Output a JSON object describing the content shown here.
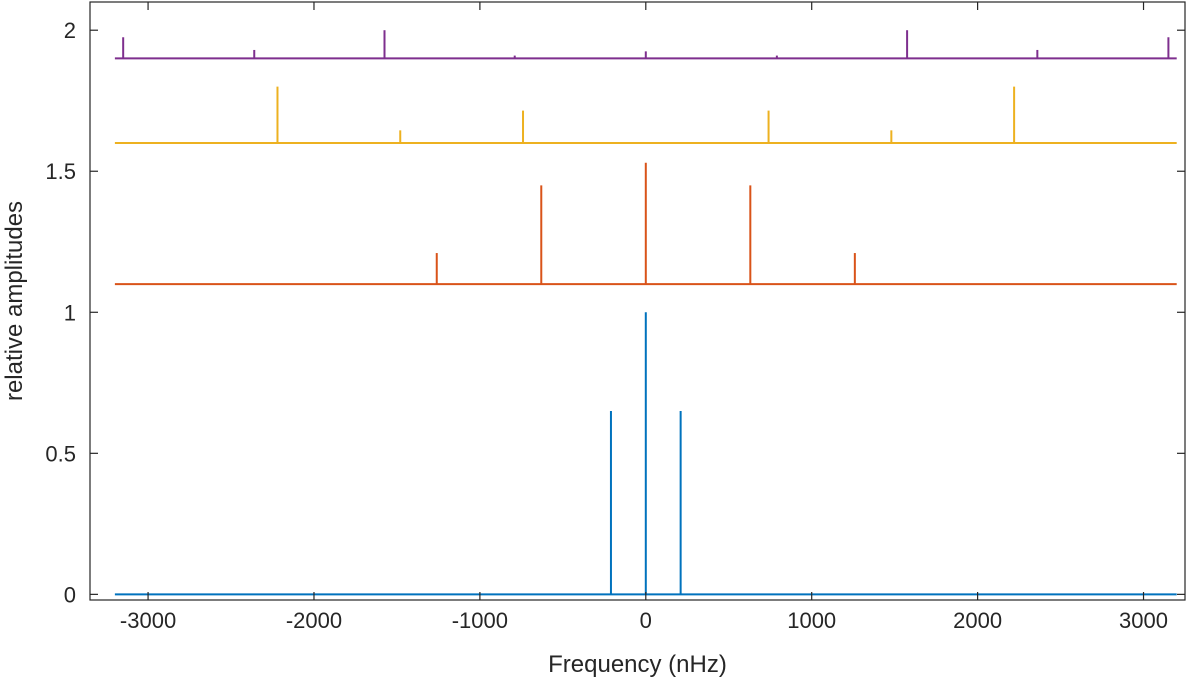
{
  "chart_data": {
    "type": "line",
    "title": "",
    "xlabel": "Frequency (nHz)",
    "ylabel": "relative amplitudes",
    "xlim": [
      -3350,
      3250
    ],
    "ylim": [
      -0.02,
      2.1
    ],
    "xticks": [
      -3000,
      -2000,
      -1000,
      0,
      1000,
      2000,
      3000
    ],
    "xtick_labels": [
      "-3000",
      "-2000",
      "-1000",
      "0",
      "1000",
      "2000",
      "3000"
    ],
    "yticks": [
      0,
      0.5,
      1,
      1.5,
      2
    ],
    "ytick_labels": [
      "0",
      "0.5",
      "1",
      "1.5",
      "2"
    ],
    "grid": false,
    "box": true,
    "series": [
      {
        "color": "#0072BD",
        "baseline": 0.0,
        "x_range": [
          -3200,
          3200
        ],
        "peaks": [
          {
            "x": -210,
            "y": 0.65
          },
          {
            "x": 0,
            "y": 1.0
          },
          {
            "x": 210,
            "y": 0.65
          }
        ]
      },
      {
        "color": "#D95319",
        "baseline": 1.1,
        "x_range": [
          -3200,
          3200
        ],
        "peaks": [
          {
            "x": -1260,
            "y": 1.21
          },
          {
            "x": -630,
            "y": 1.45
          },
          {
            "x": 0,
            "y": 1.53
          },
          {
            "x": 630,
            "y": 1.45
          },
          {
            "x": 1260,
            "y": 1.21
          }
        ]
      },
      {
        "color": "#EDB120",
        "baseline": 1.6,
        "x_range": [
          -3200,
          3200
        ],
        "peaks": [
          {
            "x": -2220,
            "y": 1.8
          },
          {
            "x": -1480,
            "y": 1.645
          },
          {
            "x": -740,
            "y": 1.715
          },
          {
            "x": 740,
            "y": 1.715
          },
          {
            "x": 1480,
            "y": 1.645
          },
          {
            "x": 2220,
            "y": 1.8
          }
        ]
      },
      {
        "color": "#7E2F8E",
        "baseline": 1.9,
        "x_range": [
          -3200,
          3200
        ],
        "peaks": [
          {
            "x": -3150,
            "y": 1.975
          },
          {
            "x": -2360,
            "y": 1.93
          },
          {
            "x": -1575,
            "y": 2.0
          },
          {
            "x": -790,
            "y": 1.91
          },
          {
            "x": 0,
            "y": 1.925
          },
          {
            "x": 790,
            "y": 1.91
          },
          {
            "x": 1575,
            "y": 2.0
          },
          {
            "x": 2360,
            "y": 1.93
          },
          {
            "x": 3150,
            "y": 1.975
          }
        ]
      }
    ]
  }
}
